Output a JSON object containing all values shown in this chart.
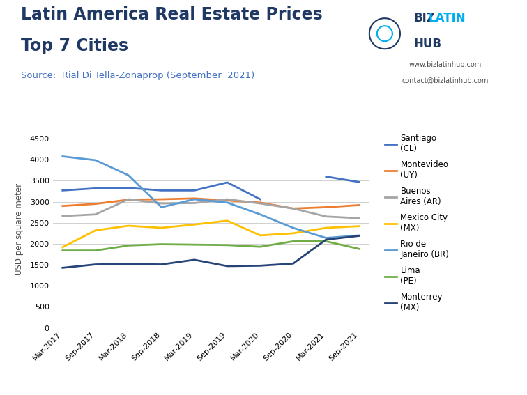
{
  "title_line1": "Latin America Real Estate Prices",
  "title_line2": "Top 7 Cities",
  "source": "Source:  Rial Di Tella-Zonaprop (September  2021)",
  "ylabel": "USD per square meter",
  "x_labels": [
    "Mar-2017",
    "Sep-2017",
    "Mar-2018",
    "Sep-2018",
    "Mar-2019",
    "Sep-2019",
    "Mar-2020",
    "Sep-2020",
    "Mar-2021",
    "Sep-2021"
  ],
  "ylim": [
    0,
    4700
  ],
  "yticks": [
    0,
    500,
    1000,
    1500,
    2000,
    2500,
    3000,
    3500,
    4000,
    4500
  ],
  "series": [
    {
      "name": "Santiago\n(CL)",
      "color": "#4472C4",
      "linewidth": 2.0,
      "linestyle": "-",
      "values": [
        3270,
        3320,
        3330,
        3270,
        3270,
        3460,
        3060,
        null,
        3600,
        3470
      ]
    },
    {
      "name": "Montevideo\n(UY)",
      "color": "#ED7D31",
      "linewidth": 2.0,
      "linestyle": "-",
      "values": [
        2900,
        2950,
        3050,
        3060,
        3080,
        3030,
        2980,
        2840,
        2870,
        2920
      ]
    },
    {
      "name": "Buenos\nAires (AR)",
      "color": "#A5A5A5",
      "linewidth": 2.0,
      "linestyle": "-",
      "values": [
        2660,
        2700,
        3060,
        2960,
        2970,
        3060,
        2960,
        2840,
        2650,
        2610
      ]
    },
    {
      "name": "Mexico City\n(MX)",
      "color": "#FFC000",
      "linewidth": 2.0,
      "linestyle": "-",
      "values": [
        1920,
        2320,
        2430,
        2380,
        2460,
        2550,
        2200,
        2250,
        2380,
        2420
      ]
    },
    {
      "name": "Rio de\nJaneiro (BR)",
      "color": "#5B9BD5",
      "linewidth": 2.0,
      "linestyle": "-",
      "values": [
        4080,
        3990,
        3630,
        2870,
        3060,
        2980,
        2700,
        2380,
        2140,
        2200
      ]
    },
    {
      "name": "Lima\n(PE)",
      "color": "#70AD47",
      "linewidth": 2.0,
      "linestyle": "-",
      "values": [
        1840,
        1840,
        1960,
        1990,
        1980,
        1970,
        1930,
        2060,
        2060,
        1880
      ]
    },
    {
      "name": "Monterrey\n(MX)",
      "color": "#264478",
      "linewidth": 2.0,
      "linestyle": "-",
      "values": [
        1430,
        1510,
        1520,
        1510,
        1620,
        1470,
        1480,
        1530,
        2100,
        2190
      ]
    }
  ],
  "background_color": "#FFFFFF",
  "grid_color": "#D0D0D0",
  "title_color": "#1F3864",
  "source_color": "#4472C4",
  "title_fontsize": 17,
  "source_fontsize": 9.5,
  "ylabel_fontsize": 8.5,
  "tick_fontsize": 8,
  "legend_fontsize": 8.5,
  "biz_latin_hub_text1": "www.bizlatinhub.com",
  "biz_latin_hub_text2": "contact@bizlatinhub.com",
  "logo_biz_color": "#1F3864",
  "logo_latin_color": "#00AEEF",
  "logo_hub_color": "#1F3864"
}
